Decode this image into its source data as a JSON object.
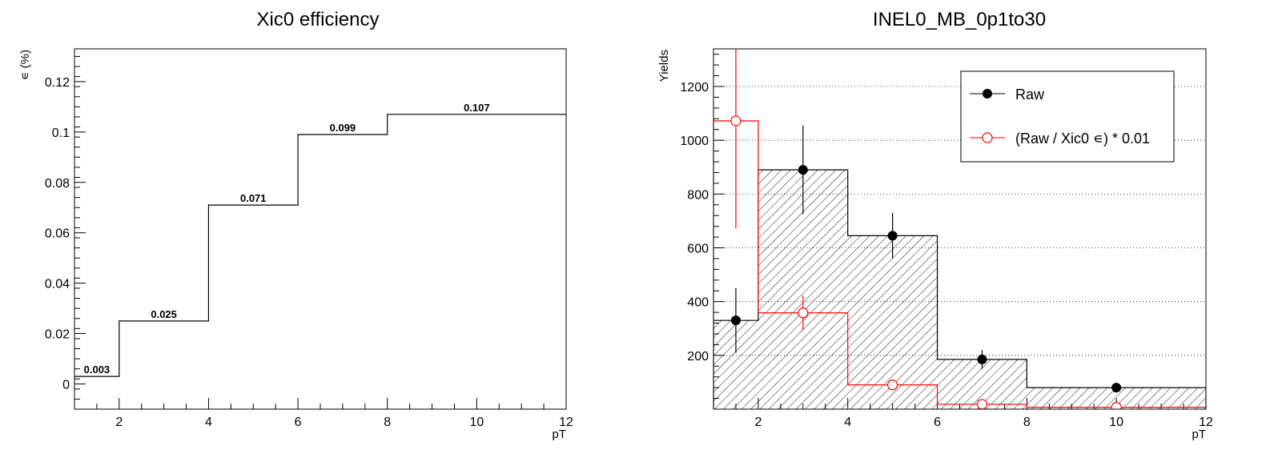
{
  "chart_data": [
    {
      "type": "histogram",
      "title": "Xic0 efficiency",
      "xlabel": "pT",
      "ylabel": "∊ (%)",
      "xlim": [
        1,
        12
      ],
      "ylim": [
        -0.01,
        0.133
      ],
      "bin_edges": [
        1,
        2,
        4,
        6,
        8,
        12
      ],
      "values": [
        0.003,
        0.025,
        0.071,
        0.099,
        0.107
      ],
      "value_labels": [
        "0.003",
        "0.025",
        "0.071",
        "0.099",
        "0.107"
      ],
      "x_ticks": [
        "2",
        "4",
        "6",
        "8",
        "10",
        "12"
      ],
      "y_ticks": [
        "0",
        "0.02",
        "0.04",
        "0.06",
        "0.08",
        "0.1",
        "0.12"
      ],
      "grid": false
    },
    {
      "type": "histogram",
      "title": "INEL0_MB_0p1to30",
      "xlabel": "pT",
      "ylabel": "Yields",
      "xlim": [
        1,
        12
      ],
      "ylim": [
        0,
        1340
      ],
      "bin_edges": [
        1,
        2,
        4,
        6,
        8,
        12
      ],
      "x_ticks": [
        "2",
        "4",
        "6",
        "8",
        "10",
        "12"
      ],
      "y_ticks": [
        "200",
        "400",
        "600",
        "800",
        "1000",
        "1200"
      ],
      "grid": "horizontal dotted",
      "legend_position": "top-right",
      "series": [
        {
          "name": "Raw",
          "color": "#000000",
          "marker": "filled-circle",
          "fill": "hatched",
          "x": [
            1.5,
            3,
            5,
            7,
            10
          ],
          "values": [
            330,
            890,
            645,
            185,
            80
          ],
          "errors": [
            120,
            165,
            85,
            35,
            18
          ]
        },
        {
          "name": "(Raw / Xic0 ∊) * 0.01",
          "color": "#ff0000",
          "marker": "open-circle",
          "fill": "none",
          "x": [
            1.5,
            3,
            5,
            7,
            10
          ],
          "values": [
            1072,
            358,
            90,
            18,
            7
          ],
          "errors": [
            400,
            65,
            12,
            5,
            2
          ]
        }
      ]
    }
  ]
}
